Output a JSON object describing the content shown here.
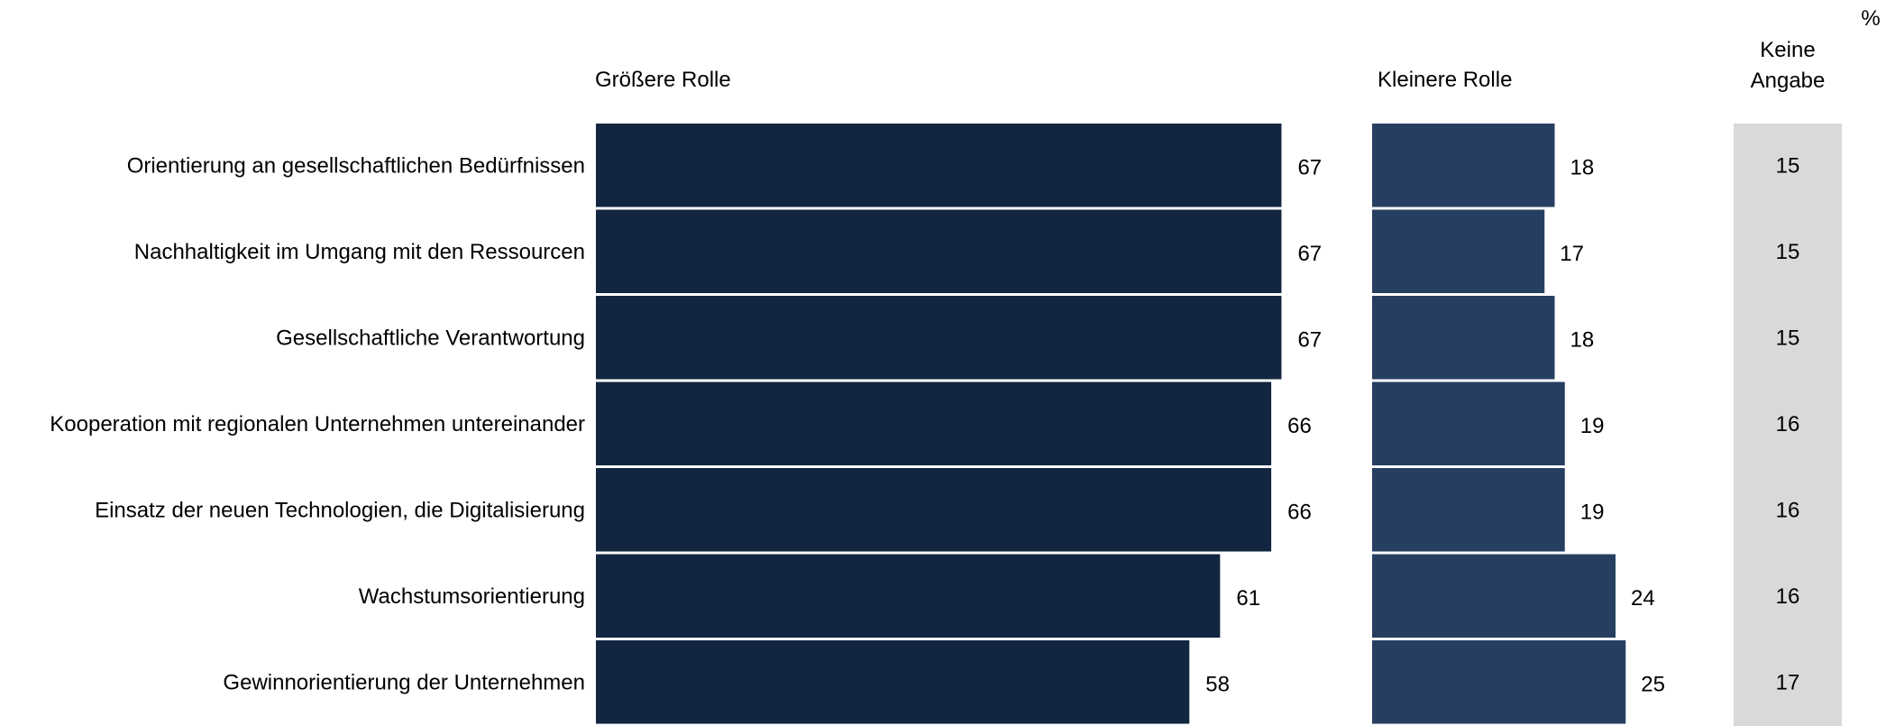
{
  "unit": "%",
  "headers": {
    "groessere": "Größere Rolle",
    "kleinere": "Kleinere Rolle",
    "keine_line1": "Keine",
    "keine_line2": "Angabe"
  },
  "colors": {
    "groessere": "#132641",
    "kleinere": "#263f60",
    "keine_bg": "#d9d9d9",
    "separator": "#ffffff"
  },
  "chart_data": {
    "type": "bar",
    "orientation": "horizontal",
    "stacked_panels": true,
    "categories": [
      "Orientierung an gesellschaftlichen Bedürfnissen",
      "Nachhaltigkeit im Umgang mit den Ressourcen",
      "Gesellschaftliche Verantwortung",
      "Kooperation mit regionalen Unternehmen untereinander",
      "Einsatz der neuen Technologien, die Digitalisierung",
      "Wachstumsorientierung",
      "Gewinnorientierung der Unternehmen"
    ],
    "series": [
      {
        "name": "Größere Rolle",
        "values": [
          67,
          67,
          67,
          66,
          66,
          61,
          58
        ]
      },
      {
        "name": "Kleinere Rolle",
        "values": [
          18,
          17,
          18,
          19,
          19,
          24,
          25
        ]
      },
      {
        "name": "Keine Angabe",
        "values": [
          15,
          15,
          15,
          16,
          16,
          16,
          17
        ]
      }
    ],
    "title": "",
    "xlabel": "",
    "ylabel": "",
    "grid": false,
    "legend": "none"
  }
}
